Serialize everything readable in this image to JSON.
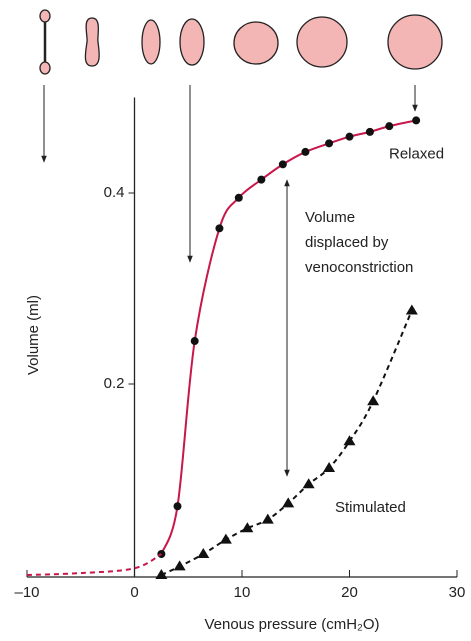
{
  "chart_data": {
    "type": "line",
    "x_label": "Venous pressure (cmH₂O)",
    "y_label": "Volume (ml)",
    "xlim": [
      -10,
      30
    ],
    "xticks": [
      {
        "value": -10,
        "label": "–10"
      },
      0,
      10,
      20,
      30
    ],
    "ylim": [
      0,
      0.5
    ],
    "yticks": [
      0.2,
      0.4
    ],
    "series": [
      {
        "name": "Relaxed",
        "color": "#c8174a",
        "marker": "circle",
        "dash": false,
        "x": [
          2.5,
          4,
          5.6,
          7.9,
          9.7,
          11.8,
          13.8,
          15.9,
          18.1,
          20,
          21.9,
          23.7,
          26.2
        ],
        "values": [
          0.022,
          0.072,
          0.245,
          0.363,
          0.395,
          0.414,
          0.43,
          0.443,
          0.452,
          0.459,
          0.464,
          0.47,
          0.476
        ]
      },
      {
        "color": "#c8174a",
        "dash": true,
        "x": [
          -10,
          -5,
          0,
          2.5
        ],
        "values": [
          0,
          0.002,
          0.007,
          0.022
        ]
      },
      {
        "name": "Stimulated",
        "color": "#111111",
        "marker": "triangle",
        "dash": true,
        "x": [
          2.5,
          4.2,
          6.4,
          8.5,
          10.5,
          12.4,
          14.3,
          16.2,
          18.1,
          20,
          22.2,
          25.8
        ],
        "values": [
          0,
          0.009,
          0.022,
          0.037,
          0.049,
          0.058,
          0.075,
          0.095,
          0.112,
          0.14,
          0.182,
          0.277
        ]
      }
    ],
    "annotation": [
      "Volume",
      "displaced by",
      "venoconstriction"
    ]
  }
}
